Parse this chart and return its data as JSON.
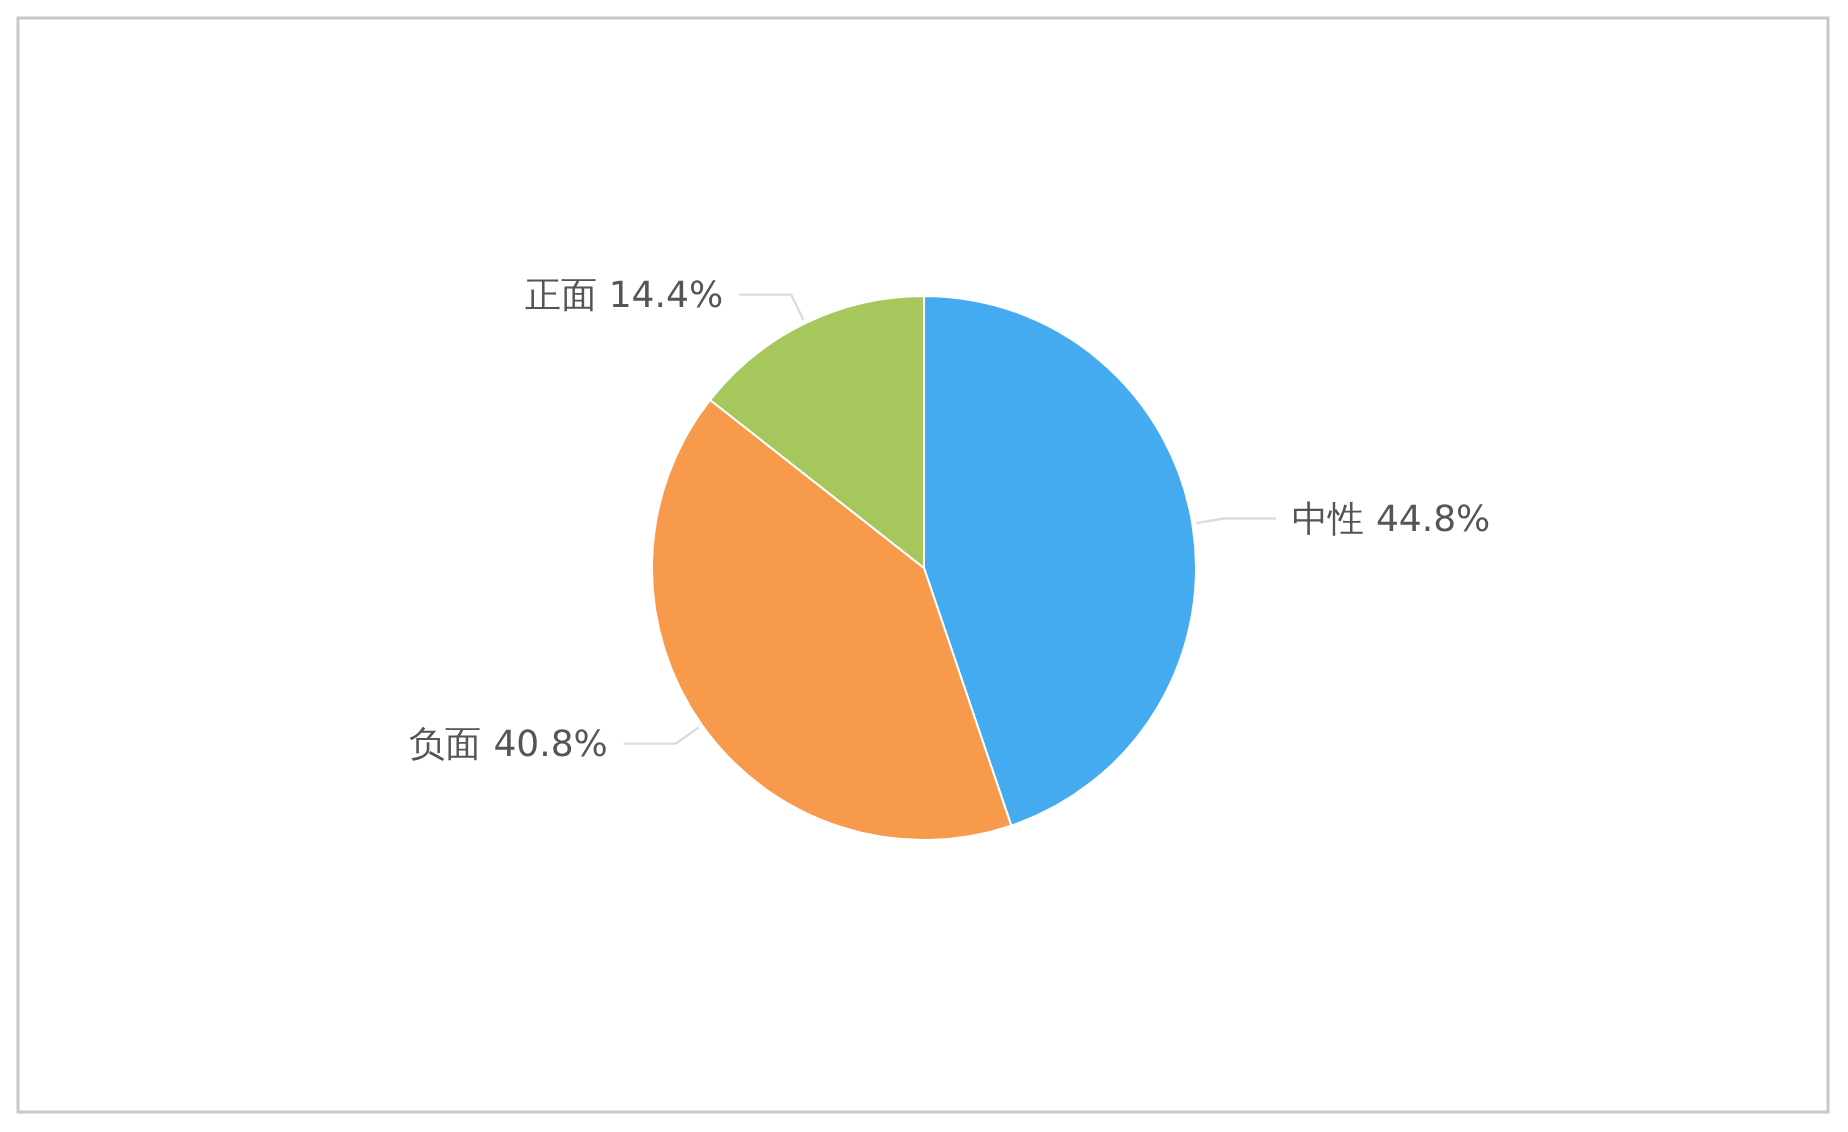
{
  "chart_data": {
    "type": "pie",
    "categories": [
      "中性",
      "负面",
      "正面"
    ],
    "values": [
      44.8,
      40.8,
      14.4
    ],
    "colors": [
      "#45abf0",
      "#f79a4b",
      "#a6c75c"
    ],
    "value_labels": [
      "44.8%",
      "40.8%",
      "14.4%"
    ]
  }
}
